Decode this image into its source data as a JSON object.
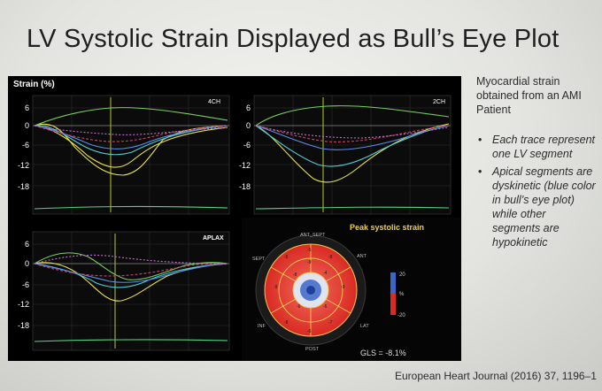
{
  "slide": {
    "title": "LV Systolic Strain Displayed as Bull’s Eye Plot",
    "citation": "European Heart Journal (2016) 37, 1196–1"
  },
  "figure": {
    "ylabel": "Strain (%)",
    "y_ticks": [
      "6",
      "0",
      "-6",
      "-12",
      "-18"
    ],
    "panels": {
      "four_chamber": "4CH",
      "two_chamber": "2CH",
      "apical_long_axis": "APLAX"
    },
    "bullseye": {
      "title": "Peak systolic strain",
      "labels": {
        "top": "ANT_SEPT",
        "ant": "ANT",
        "sept": "SEPT",
        "inf": "INF",
        "lat": "LAT",
        "post": "POST"
      },
      "scale": {
        "max": "20",
        "unit": "%",
        "min": "-20"
      },
      "gls": "GLS = -8.1%"
    }
  },
  "side_text": {
    "intro": "Myocardial strain obtained from an AMI Patient",
    "bullets": [
      "Each trace represent one LV segment",
      "Apical segments are dyskinetic (blue color in bull’s eye plot) while other segments are hypokinetic"
    ]
  },
  "colors": {
    "panel_bg": "#0a0a0a",
    "bullseye_red": "#e8352e",
    "segment_lines": "#f2c94c",
    "apex_blue": "#3b66c9",
    "peak_title": "#f0d23c"
  }
}
